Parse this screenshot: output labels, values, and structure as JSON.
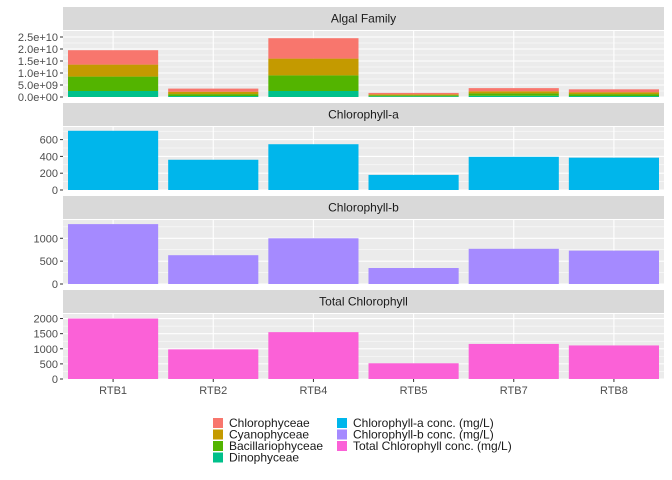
{
  "chart_data": {
    "type": "bar",
    "layout": "faceted",
    "grid": true,
    "legend_position": "bottom",
    "categories": [
      "RTB1",
      "RTB2",
      "RTB4",
      "RTB5",
      "RTB7",
      "RTB8"
    ],
    "panels": [
      {
        "title": "Algal Family",
        "stacked": true,
        "ylim": [
          0,
          27500000000.0
        ],
        "yticks": [
          0,
          5000000000.0,
          10000000000.0,
          15000000000.0,
          20000000000.0,
          25000000000.0
        ],
        "ytick_labels": [
          "0.0e+00",
          "5.0e+09",
          "1.0e+10",
          "1.5e+10",
          "2.0e+10",
          "2.5e+10"
        ],
        "series": [
          {
            "name": "Dinophyceae",
            "color": "#00C08B",
            "values": [
              2500000000.0,
              400000000.0,
              2500000000.0,
              300000000.0,
              500000000.0,
              400000000.0
            ]
          },
          {
            "name": "Bacillariophyceae",
            "color": "#53B400",
            "values": [
              6000000000.0,
              800000000.0,
              6500000000.0,
              400000000.0,
              1000000000.0,
              800000000.0
            ]
          },
          {
            "name": "Cyanophyceae",
            "color": "#C49A00",
            "values": [
              5000000000.0,
              1000000000.0,
              7000000000.0,
              400000000.0,
              900000000.0,
              800000000.0
            ]
          },
          {
            "name": "Chlorophyceae",
            "color": "#F8766D",
            "values": [
              6000000000.0,
              1300000000.0,
              8500000000.0,
              600000000.0,
              1300000000.0,
              1200000000.0
            ]
          }
        ]
      },
      {
        "title": "Chlorophyll-a",
        "stacked": false,
        "ylim": [
          0,
          750
        ],
        "yticks": [
          0,
          200,
          400,
          600
        ],
        "ytick_labels": [
          "0",
          "200",
          "400",
          "600"
        ],
        "series": [
          {
            "name": "Chlorophyll-a conc. (mg/L)",
            "color": "#00B6EB",
            "values": [
              705,
              360,
              545,
              180,
              395,
              385
            ]
          }
        ]
      },
      {
        "title": "Chlorophyll-b",
        "stacked": false,
        "ylim": [
          0,
          1400
        ],
        "yticks": [
          0,
          500,
          1000
        ],
        "ytick_labels": [
          "0",
          "500",
          "1000"
        ],
        "series": [
          {
            "name": "Chlorophyll-b conc. (mg/L)",
            "color": "#A58AFF",
            "values": [
              1310,
              630,
              1000,
              350,
              770,
              730
            ]
          }
        ]
      },
      {
        "title": "Total Chlorophyll",
        "stacked": false,
        "ylim": [
          0,
          2150
        ],
        "yticks": [
          0,
          500,
          1000,
          1500,
          2000
        ],
        "ytick_labels": [
          "0",
          "500",
          "1000",
          "1500",
          "2000"
        ],
        "series": [
          {
            "name": "Total Chlorophyll conc. (mg/L)",
            "color": "#FB61D7",
            "values": [
              2000,
              980,
              1550,
              520,
              1160,
              1110
            ]
          }
        ]
      }
    ],
    "legend": {
      "columns": [
        [
          {
            "name": "Chlorophyceae",
            "color": "#F8766D"
          },
          {
            "name": "Cyanophyceae",
            "color": "#C49A00"
          },
          {
            "name": "Bacillariophyceae",
            "color": "#53B400"
          },
          {
            "name": "Dinophyceae",
            "color": "#00C08B"
          }
        ],
        [
          {
            "name": "Chlorophyll-a conc. (mg/L)",
            "color": "#00B6EB"
          },
          {
            "name": "Chlorophyll-b conc. (mg/L)",
            "color": "#A58AFF"
          },
          {
            "name": "Total Chlorophyll conc. (mg/L)",
            "color": "#FB61D7"
          }
        ]
      ]
    }
  }
}
